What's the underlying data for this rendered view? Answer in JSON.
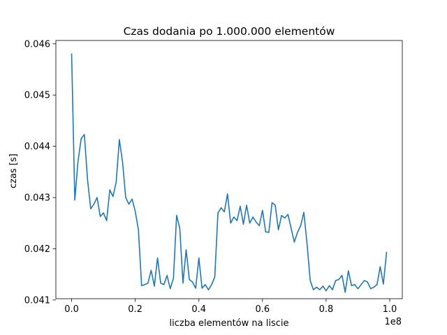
{
  "chart_data": {
    "type": "line",
    "title": "Czas dodania po 1.000.000 elementów",
    "xlabel": "liczba elementów na liscie",
    "ylabel": "czas [s]",
    "x_offset_label": "1e8",
    "xlim": [
      -0.0495,
      1.0395
    ],
    "ylim": [
      0.041025,
      0.046065
    ],
    "x_ticks": [
      0.0,
      0.2,
      0.4,
      0.6,
      0.8,
      1.0
    ],
    "x_tick_labels": [
      "0.0",
      "0.2",
      "0.4",
      "0.6",
      "0.8",
      "1.0"
    ],
    "y_ticks": [
      0.041,
      0.042,
      0.043,
      0.044,
      0.045,
      0.046
    ],
    "y_tick_labels": [
      "0.041",
      "0.042",
      "0.043",
      "0.044",
      "0.045",
      "0.046"
    ],
    "grid": false,
    "series": [
      {
        "color": "#1f77b4",
        "x_start": 0.0,
        "x_step": 0.01,
        "values": [
          0.0458,
          0.04295,
          0.0437,
          0.04415,
          0.04423,
          0.04335,
          0.04278,
          0.04287,
          0.043,
          0.04263,
          0.0427,
          0.04255,
          0.04315,
          0.04302,
          0.0433,
          0.04413,
          0.0437,
          0.043,
          0.04287,
          0.04297,
          0.04273,
          0.04237,
          0.04128,
          0.0413,
          0.04133,
          0.04158,
          0.04127,
          0.04182,
          0.04133,
          0.0413,
          0.04148,
          0.04122,
          0.04142,
          0.04265,
          0.0424,
          0.04133,
          0.04198,
          0.0414,
          0.04135,
          0.04123,
          0.04182,
          0.04123,
          0.0413,
          0.0412,
          0.0413,
          0.04145,
          0.0427,
          0.0428,
          0.04272,
          0.04307,
          0.0425,
          0.04262,
          0.04255,
          0.04283,
          0.04248,
          0.04285,
          0.0425,
          0.04262,
          0.04252,
          0.04245,
          0.04275,
          0.04233,
          0.04232,
          0.0429,
          0.04285,
          0.04237,
          0.04265,
          0.0426,
          0.04267,
          0.0424,
          0.04213,
          0.04232,
          0.04245,
          0.04271,
          0.0421,
          0.04138,
          0.0412,
          0.04125,
          0.0412,
          0.04127,
          0.04118,
          0.04128,
          0.0412,
          0.04138,
          0.0414,
          0.04148,
          0.04115,
          0.04157,
          0.04128,
          0.0413,
          0.04122,
          0.0413,
          0.04138,
          0.04135,
          0.04122,
          0.04125,
          0.0413,
          0.04165,
          0.04131,
          0.04193
        ]
      }
    ]
  }
}
